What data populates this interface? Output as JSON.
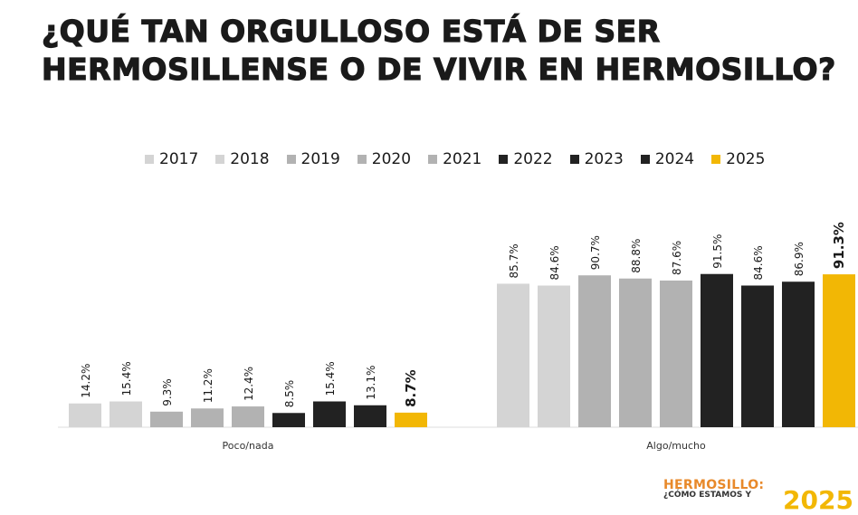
{
  "title_lines": [
    "¿QUÉ TAN ORGULLOSO ESTÁ DE SER",
    "HERMOSILLENSE O DE VIVIR EN HERMOSILLO?"
  ],
  "brand": {
    "line1": "HERMOSILLO:",
    "line2": "¿CÓMO ESTAMOS Y",
    "year": "2025"
  },
  "chart_data": {
    "type": "bar",
    "title": "¿QUÉ TAN ORGULLOSO ESTÁ DE SER HERMOSILLENSE O DE VIVIR EN HERMOSILLO?",
    "categories": [
      "Poco/nada",
      "Algo/mucho"
    ],
    "legend_position": "top",
    "grid": false,
    "ylim": [
      0,
      100
    ],
    "series": [
      {
        "name": "2017",
        "color": "#d4d4d4",
        "values": [
          14.2,
          85.7
        ],
        "labels": [
          "14.2%",
          "85.7%"
        ]
      },
      {
        "name": "2018",
        "color": "#d4d4d4",
        "values": [
          15.4,
          84.6
        ],
        "labels": [
          "15.4%",
          "84.6%"
        ]
      },
      {
        "name": "2019",
        "color": "#b2b2b2",
        "values": [
          9.3,
          90.7
        ],
        "labels": [
          "9.3%",
          "90.7%"
        ]
      },
      {
        "name": "2020",
        "color": "#b2b2b2",
        "values": [
          11.2,
          88.8
        ],
        "labels": [
          "11.2%",
          "88.8%"
        ]
      },
      {
        "name": "2021",
        "color": "#b2b2b2",
        "values": [
          12.4,
          87.6
        ],
        "labels": [
          "12.4%",
          "87.6%"
        ]
      },
      {
        "name": "2022",
        "color": "#222222",
        "values": [
          8.5,
          91.5
        ],
        "labels": [
          "8.5%",
          "91.5%"
        ]
      },
      {
        "name": "2023",
        "color": "#222222",
        "values": [
          15.4,
          84.6
        ],
        "labels": [
          "15.4%",
          "84.6%"
        ]
      },
      {
        "name": "2024",
        "color": "#222222",
        "values": [
          13.1,
          86.9
        ],
        "labels": [
          "13.1%",
          "86.9%"
        ]
      },
      {
        "name": "2025",
        "color": "#f2b705",
        "values": [
          8.7,
          91.3
        ],
        "labels": [
          "8.7%",
          "91.3%"
        ]
      }
    ]
  }
}
